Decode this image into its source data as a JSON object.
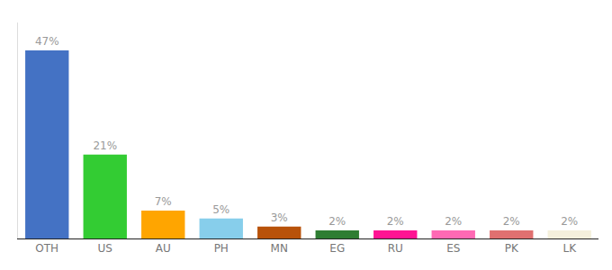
{
  "chart_data": {
    "type": "bar",
    "categories": [
      "OTH",
      "US",
      "AU",
      "PH",
      "MN",
      "EG",
      "RU",
      "ES",
      "PK",
      "LK"
    ],
    "values": [
      47,
      21,
      7,
      5,
      3,
      2,
      2,
      2,
      2,
      2
    ],
    "value_labels": [
      "47%",
      "21%",
      "7%",
      "5%",
      "3%",
      "2%",
      "2%",
      "2%",
      "2%",
      "2%"
    ],
    "colors": [
      "#4472C4",
      "#33CC33",
      "#FFA500",
      "#87CEEB",
      "#B8520A",
      "#2E7D32",
      "#FF1493",
      "#FF69B4",
      "#E07070",
      "#F5F0DC"
    ],
    "ylim": [
      0,
      54
    ],
    "data_labels": true,
    "tick_labels": "x",
    "grid": false
  }
}
